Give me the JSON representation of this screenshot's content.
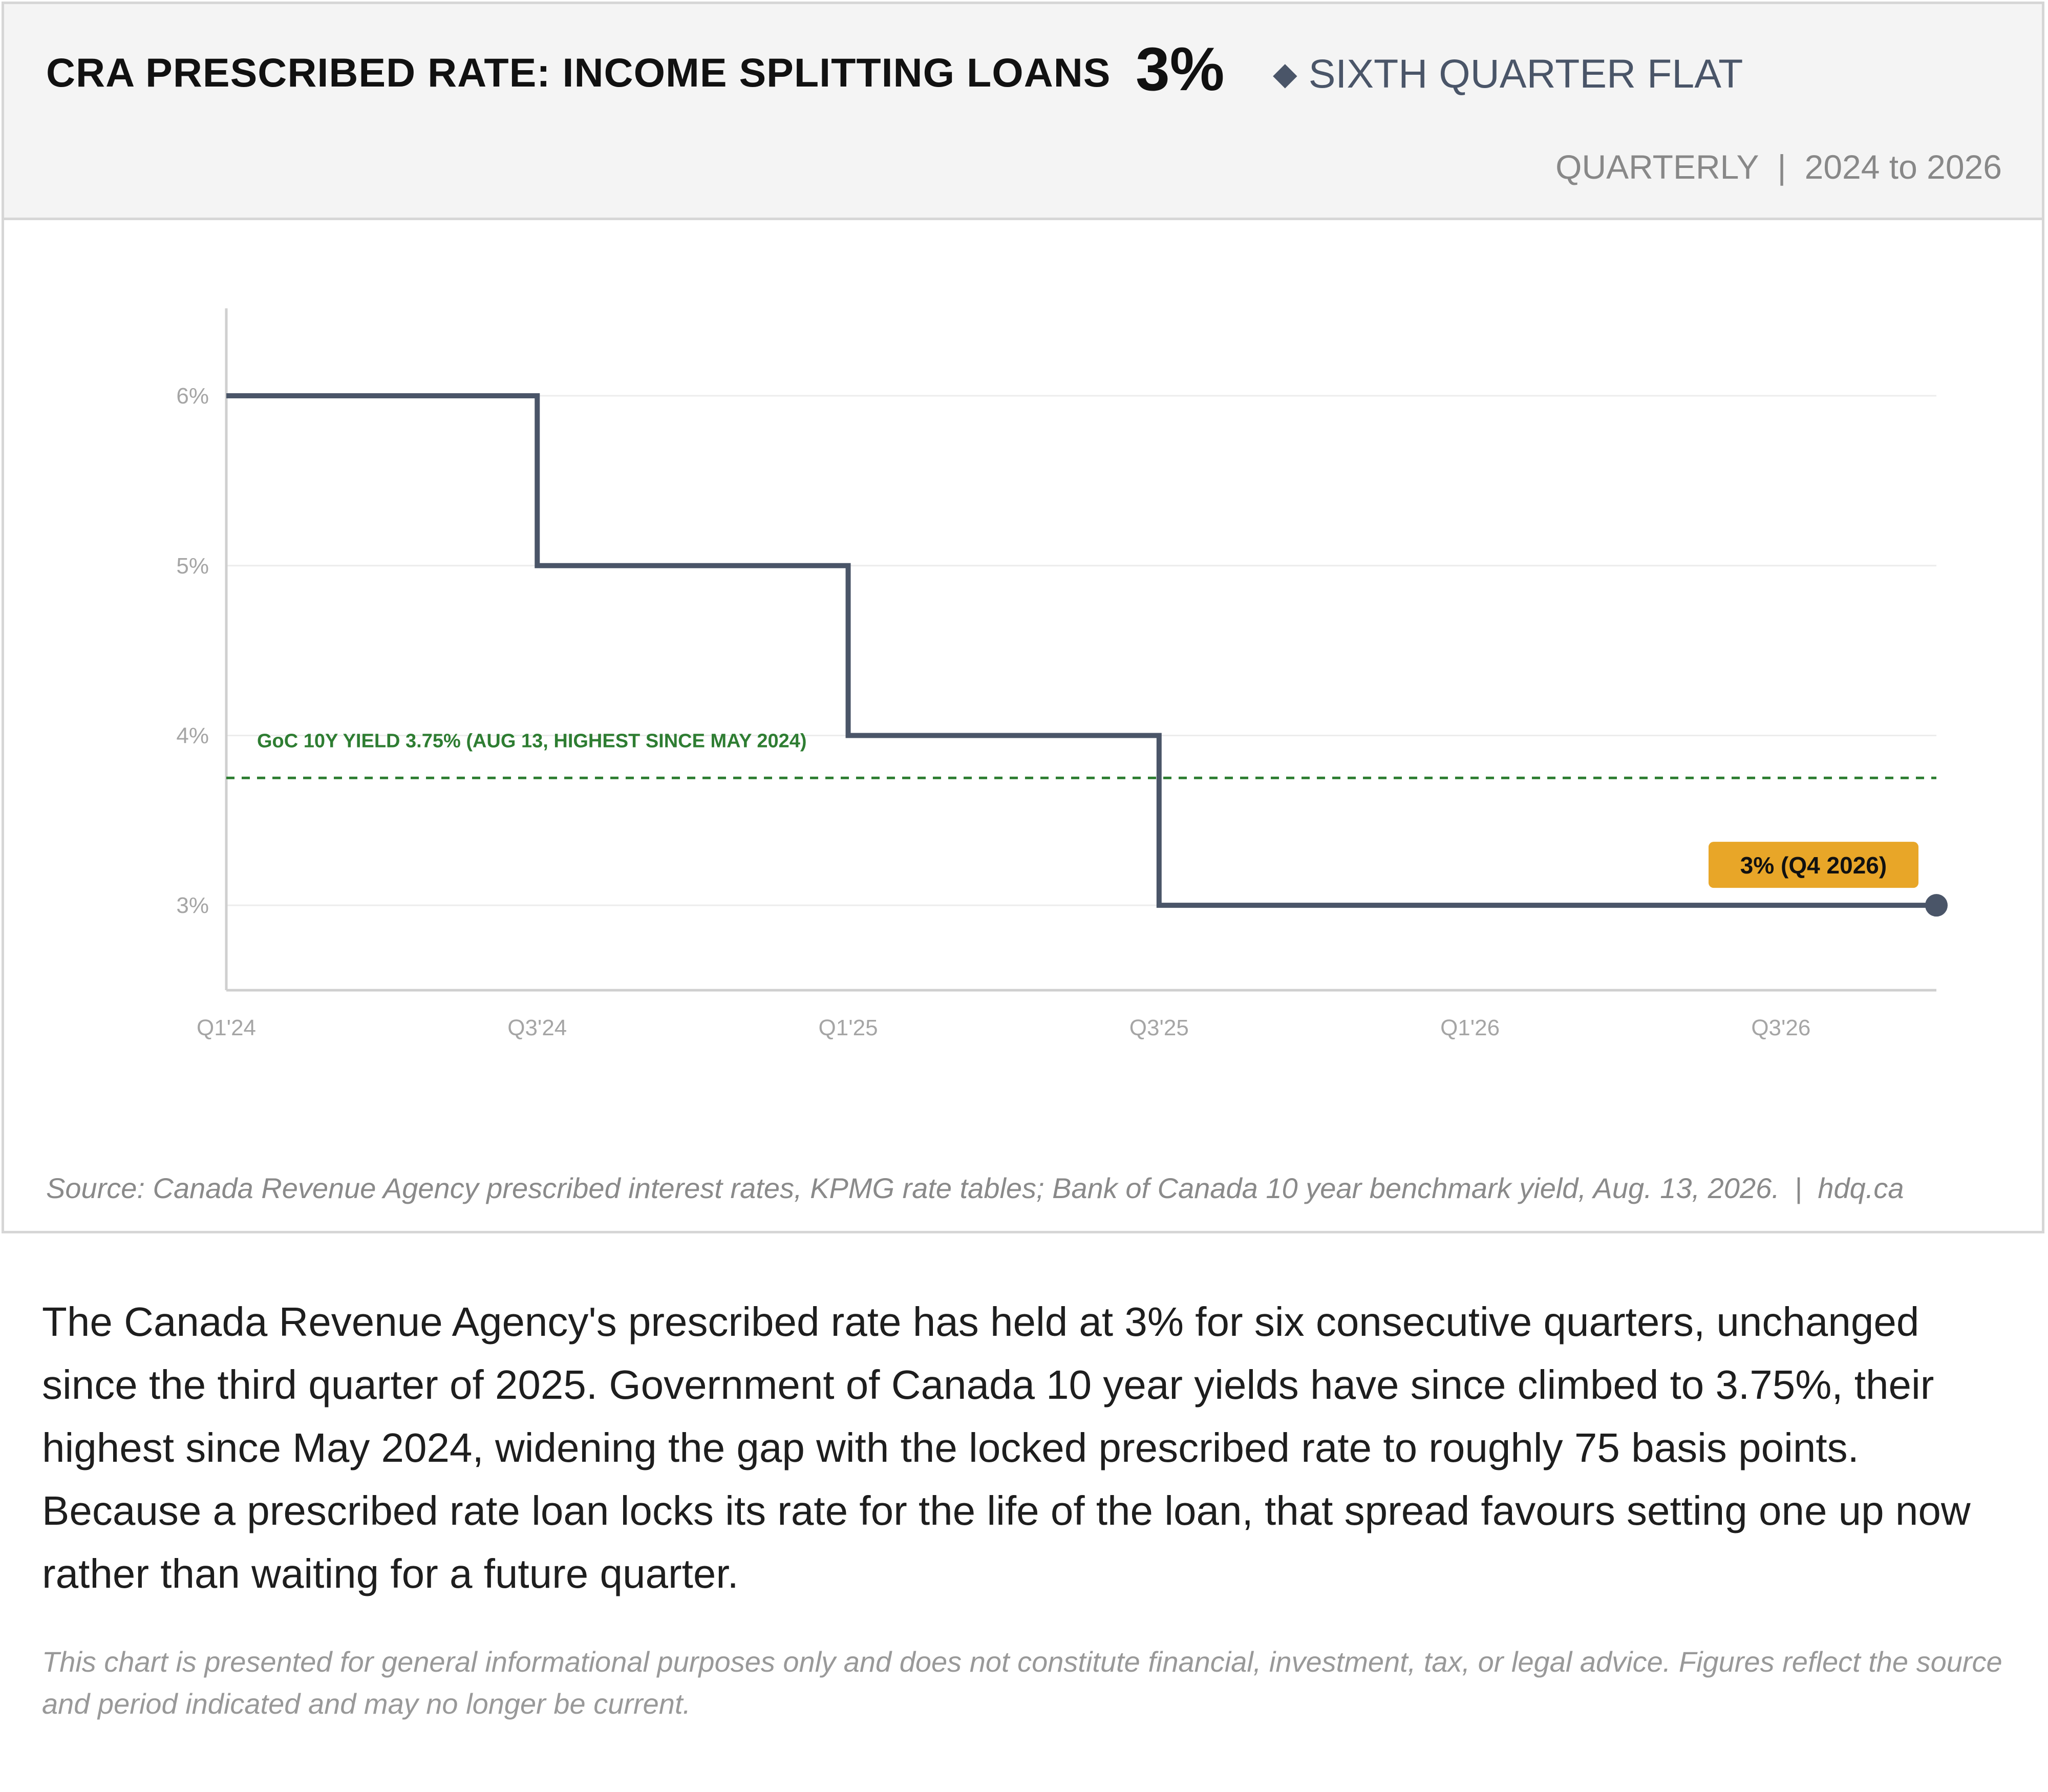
{
  "header": {
    "title": "CRA PRESCRIBED RATE: INCOME SPLITTING LOANS",
    "headline_value": "3%",
    "status_marker": "◆",
    "status": "SIXTH QUARTER FLAT",
    "frequency": "QUARTERLY",
    "separator": "|",
    "period": "2024 to 2026"
  },
  "colors": {
    "series_line": "#4a5568",
    "reference_line": "#2e7d32",
    "callout_bg": "#e8a628",
    "grid": "#ececec",
    "axis": "#cfcfcf"
  },
  "chart_data": {
    "type": "line",
    "step": true,
    "x": [
      "Q1'24",
      "Q2'24",
      "Q3'24",
      "Q4'24",
      "Q1'25",
      "Q2'25",
      "Q3'25",
      "Q4'25",
      "Q1'26",
      "Q2'26",
      "Q3'26",
      "Q4'26"
    ],
    "x_tick_labels": [
      "Q1'24",
      "Q3'24",
      "Q1'25",
      "Q3'25",
      "Q1'26",
      "Q3'26"
    ],
    "series": [
      {
        "values": [
          6,
          6,
          5,
          5,
          4,
          4,
          3,
          3,
          3,
          3,
          3,
          3
        ]
      }
    ],
    "y_ticks": [
      3,
      4,
      5,
      6
    ],
    "y_tick_labels": [
      "3%",
      "4%",
      "5%",
      "6%"
    ],
    "ylim": [
      2.5,
      6.5
    ],
    "grid": true,
    "reference_line": {
      "value": 3.75,
      "label": "GoC 10Y YIELD 3.75% (AUG 13, HIGHEST SINCE MAY 2024)",
      "style": "dashed"
    },
    "end_callout": "3% (Q4 2026)",
    "xlabel": "",
    "ylabel": ""
  },
  "source": {
    "text": "Source: Canada Revenue Agency prescribed interest rates, KPMG rate tables; Bank of Canada 10 year benchmark yield, Aug. 13, 2026.",
    "separator": "|",
    "site": "hdq.ca"
  },
  "body_text": "The Canada Revenue Agency's prescribed rate has held at 3% for six consecutive quarters, unchanged since the third quarter of 2025. Government of Canada 10 year yields have since climbed to 3.75%, their highest since May 2024, widening the gap with the locked prescribed rate to roughly 75 basis points. Because a prescribed rate loan locks its rate for the life of the loan, that spread favours setting one up now rather than waiting for a future quarter.",
  "disclaimer": "This chart is presented for general informational purposes only and does not constitute financial, investment, tax, or legal advice. Figures reflect the source and period indicated and may no longer be current."
}
